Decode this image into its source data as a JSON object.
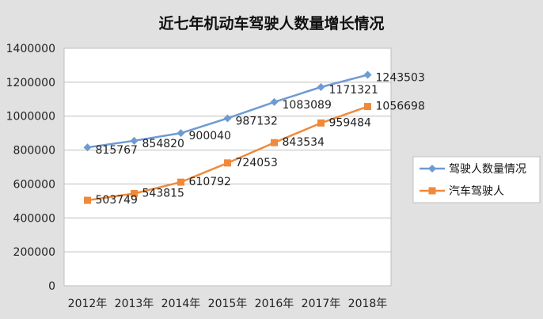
{
  "chart_data": {
    "type": "line",
    "title": "近七年机动车驾驶人数量增长情况",
    "categories": [
      "2012年",
      "2013年",
      "2014年",
      "2015年",
      "2016年",
      "2017年",
      "2018年"
    ],
    "yticks": [
      "0",
      "200000",
      "400000",
      "600000",
      "800000",
      "1000000",
      "1200000",
      "1400000"
    ],
    "ylim": [
      0,
      1400000
    ],
    "grid": "horizontal",
    "legend_position": "right",
    "series": [
      {
        "name": "驾驶人数量情况",
        "color": "#6f9ad2",
        "marker": "diamond",
        "values": [
          815767,
          854820,
          900040,
          987132,
          1083089,
          1171321,
          1243503
        ]
      },
      {
        "name": "汽车驾驶人",
        "color": "#ef8a3c",
        "marker": "square",
        "values": [
          503749,
          543815,
          610792,
          724053,
          843534,
          959484,
          1056698
        ]
      }
    ]
  }
}
